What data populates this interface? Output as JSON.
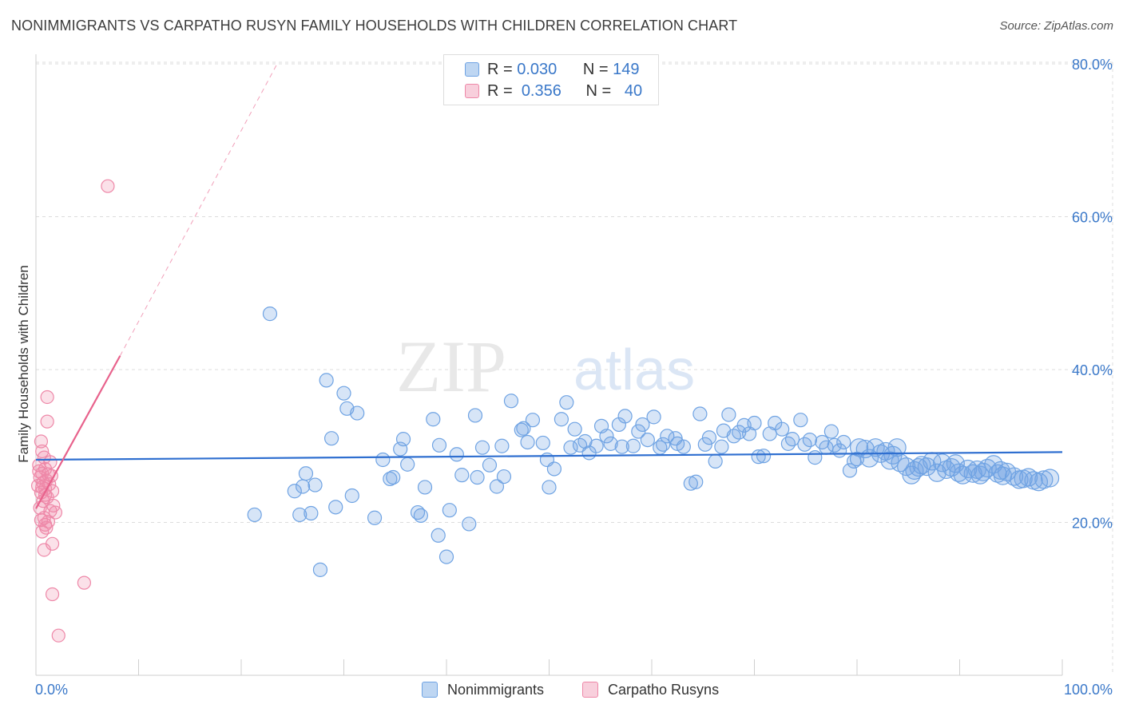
{
  "title": "NONIMMIGRANTS VS CARPATHO RUSYN FAMILY HOUSEHOLDS WITH CHILDREN CORRELATION CHART",
  "source": "Source: ZipAtlas.com",
  "watermark": {
    "zip": "ZIP",
    "atlas": "atlas"
  },
  "legend": {
    "rows": [
      {
        "r_label": "R =",
        "r_value": "0.030",
        "n_label": "N =",
        "n_value": "149"
      },
      {
        "r_label": "R =",
        "r_value": "0.356",
        "n_label": "N =",
        "n_value": "40"
      }
    ]
  },
  "bottom_legend": {
    "series1": "Nonimmigrants",
    "series2": "Carpatho Rusyns"
  },
  "colors": {
    "blue": "#6fa3e3",
    "blue_fill": "rgba(111,163,227,0.28)",
    "blue_line": "#2f6fd0",
    "pink": "#ee88a8",
    "pink_fill": "rgba(238,136,168,0.25)",
    "pink_line": "#e8628c",
    "axis_text": "#3a78c9",
    "grid": "#dcdcdc"
  },
  "chart_data": {
    "type": "scatter",
    "title": "NONIMMIGRANTS VS CARPATHO RUSYN FAMILY HOUSEHOLDS WITH CHILDREN CORRELATION CHART",
    "xlabel": "",
    "ylabel": "Family Households with Children",
    "xlim": [
      0,
      100
    ],
    "ylim": [
      0,
      80
    ],
    "x_tick_labels": [
      "0.0%",
      "100.0%"
    ],
    "y_ticks": [
      20,
      40,
      60,
      80
    ],
    "y_tick_labels": [
      "20.0%",
      "40.0%",
      "60.0%",
      "80.0%"
    ],
    "grid": true,
    "series": [
      {
        "name": "Nonimmigrants",
        "R": 0.03,
        "N": 149,
        "trend": {
          "x": [
            0,
            100
          ],
          "y": [
            28.2,
            29.2
          ],
          "style": "solid"
        },
        "points": [
          [
            22.8,
            47.3
          ],
          [
            27.7,
            13.8
          ],
          [
            21.3,
            21.0
          ],
          [
            25.2,
            24.1
          ],
          [
            26.0,
            24.7
          ],
          [
            26.3,
            26.4
          ],
          [
            27.2,
            24.9
          ],
          [
            25.7,
            21.0
          ],
          [
            26.8,
            21.2
          ],
          [
            28.3,
            38.6
          ],
          [
            28.8,
            31.0
          ],
          [
            29.2,
            22.0
          ],
          [
            30.0,
            36.9
          ],
          [
            30.3,
            34.9
          ],
          [
            30.8,
            23.5
          ],
          [
            31.3,
            34.3
          ],
          [
            33.0,
            20.6
          ],
          [
            33.8,
            28.2
          ],
          [
            34.5,
            25.7
          ],
          [
            34.8,
            25.9
          ],
          [
            35.5,
            29.6
          ],
          [
            35.8,
            30.9
          ],
          [
            36.2,
            27.6
          ],
          [
            37.2,
            21.3
          ],
          [
            37.5,
            20.9
          ],
          [
            37.9,
            24.6
          ],
          [
            38.7,
            33.5
          ],
          [
            39.2,
            18.3
          ],
          [
            39.3,
            30.1
          ],
          [
            40.0,
            15.5
          ],
          [
            40.3,
            21.6
          ],
          [
            41.0,
            28.9
          ],
          [
            41.5,
            26.2
          ],
          [
            42.2,
            19.8
          ],
          [
            42.8,
            34.0
          ],
          [
            43.0,
            25.9
          ],
          [
            43.5,
            29.8
          ],
          [
            44.2,
            27.5
          ],
          [
            44.9,
            24.7
          ],
          [
            45.4,
            30.0
          ],
          [
            45.6,
            26.0
          ],
          [
            46.3,
            35.9
          ],
          [
            47.3,
            32.1
          ],
          [
            47.5,
            32.3
          ],
          [
            47.9,
            30.5
          ],
          [
            48.4,
            33.4
          ],
          [
            49.4,
            30.4
          ],
          [
            49.8,
            28.2
          ],
          [
            50.0,
            24.6
          ],
          [
            50.5,
            27.0
          ],
          [
            51.2,
            33.5
          ],
          [
            51.7,
            35.7
          ],
          [
            52.1,
            29.8
          ],
          [
            52.5,
            32.2
          ],
          [
            53.0,
            30.1
          ],
          [
            53.5,
            30.6
          ],
          [
            53.9,
            29.1
          ],
          [
            54.6,
            30.0
          ],
          [
            55.1,
            32.6
          ],
          [
            55.6,
            31.3
          ],
          [
            56.0,
            30.3
          ],
          [
            56.8,
            32.8
          ],
          [
            57.1,
            29.9
          ],
          [
            57.4,
            33.9
          ],
          [
            58.2,
            30.0
          ],
          [
            58.7,
            31.9
          ],
          [
            59.1,
            32.8
          ],
          [
            59.6,
            30.8
          ],
          [
            60.2,
            33.8
          ],
          [
            60.8,
            29.8
          ],
          [
            61.1,
            30.2
          ],
          [
            61.5,
            31.3
          ],
          [
            62.3,
            31.0
          ],
          [
            62.5,
            30.3
          ],
          [
            63.1,
            29.9
          ],
          [
            63.8,
            25.1
          ],
          [
            64.3,
            25.3
          ],
          [
            64.7,
            34.2
          ],
          [
            65.2,
            30.2
          ],
          [
            65.6,
            31.1
          ],
          [
            66.2,
            28.0
          ],
          [
            66.8,
            29.9
          ],
          [
            67.0,
            32.0
          ],
          [
            67.5,
            34.1
          ],
          [
            68.0,
            31.3
          ],
          [
            68.5,
            31.8
          ],
          [
            69.0,
            32.7
          ],
          [
            69.5,
            31.6
          ],
          [
            70.0,
            33.0
          ],
          [
            70.4,
            28.6
          ],
          [
            70.9,
            28.7
          ],
          [
            71.5,
            31.6
          ],
          [
            72.0,
            33.0
          ],
          [
            72.7,
            32.2
          ],
          [
            73.3,
            30.3
          ],
          [
            73.7,
            30.9
          ],
          [
            74.5,
            33.4
          ],
          [
            74.9,
            30.2
          ],
          [
            75.4,
            30.8
          ],
          [
            75.9,
            28.5
          ],
          [
            76.6,
            30.5
          ],
          [
            77.0,
            29.8
          ],
          [
            77.5,
            31.9
          ],
          [
            78.3,
            29.4
          ],
          [
            78.7,
            30.5
          ],
          [
            79.3,
            26.8
          ],
          [
            79.7,
            28.0
          ],
          [
            80.2,
            29.8
          ],
          [
            80.8,
            29.6
          ],
          [
            81.2,
            28.4
          ],
          [
            81.8,
            29.8
          ],
          [
            82.3,
            29.0
          ],
          [
            82.8,
            29.3
          ],
          [
            83.2,
            28.1
          ],
          [
            83.9,
            29.8
          ],
          [
            84.2,
            27.8
          ],
          [
            84.8,
            27.3
          ],
          [
            85.3,
            26.2
          ],
          [
            85.6,
            26.8
          ],
          [
            86.3,
            27.5
          ],
          [
            86.8,
            27.3
          ],
          [
            87.3,
            28.0
          ],
          [
            87.8,
            26.5
          ],
          [
            88.3,
            27.8
          ],
          [
            88.7,
            26.9
          ],
          [
            89.2,
            27.2
          ],
          [
            89.6,
            27.7
          ],
          [
            90.3,
            26.2
          ],
          [
            90.8,
            27.0
          ],
          [
            91.3,
            26.4
          ],
          [
            91.7,
            26.9
          ],
          [
            92.3,
            26.6
          ],
          [
            92.7,
            27.1
          ],
          [
            93.3,
            27.6
          ],
          [
            93.7,
            26.4
          ],
          [
            94.2,
            26.1
          ],
          [
            94.6,
            26.6
          ],
          [
            95.3,
            26.0
          ],
          [
            95.8,
            25.6
          ],
          [
            96.2,
            25.7
          ],
          [
            96.7,
            25.9
          ],
          [
            97.2,
            25.5
          ],
          [
            97.7,
            25.3
          ],
          [
            98.2,
            25.6
          ],
          [
            98.8,
            25.8
          ],
          [
            94.0,
            26.8
          ],
          [
            92.0,
            26.2
          ],
          [
            89.9,
            26.5
          ],
          [
            86.0,
            27.2
          ],
          [
            83.5,
            28.8
          ],
          [
            80.0,
            28.3
          ],
          [
            77.8,
            30.1
          ]
        ]
      },
      {
        "name": "Carpatho Rusyns",
        "R": 0.356,
        "N": 40,
        "trend": {
          "x": [
            0,
            8.2
          ],
          "y": [
            21.8,
            41.8
          ],
          "style": "solid",
          "extension_to": [
            23.5,
            80.0
          ],
          "extension_style": "dashed"
        },
        "points": [
          [
            7.0,
            64.0
          ],
          [
            1.1,
            36.4
          ],
          [
            1.1,
            33.2
          ],
          [
            0.5,
            30.6
          ],
          [
            0.6,
            29.3
          ],
          [
            0.8,
            28.5
          ],
          [
            1.4,
            27.9
          ],
          [
            0.3,
            27.5
          ],
          [
            0.9,
            27.0
          ],
          [
            0.6,
            26.4
          ],
          [
            1.5,
            26.1
          ],
          [
            0.4,
            25.9
          ],
          [
            1.0,
            25.5
          ],
          [
            0.7,
            25.2
          ],
          [
            1.3,
            25.0
          ],
          [
            0.2,
            24.8
          ],
          [
            0.9,
            24.4
          ],
          [
            1.6,
            24.1
          ],
          [
            0.5,
            23.9
          ],
          [
            1.1,
            23.3
          ],
          [
            0.7,
            22.8
          ],
          [
            1.7,
            22.2
          ],
          [
            0.4,
            21.9
          ],
          [
            1.4,
            21.5
          ],
          [
            1.9,
            21.3
          ],
          [
            0.8,
            20.6
          ],
          [
            0.5,
            20.3
          ],
          [
            1.2,
            20.1
          ],
          [
            0.9,
            19.7
          ],
          [
            1.0,
            19.3
          ],
          [
            0.6,
            18.8
          ],
          [
            1.6,
            17.2
          ],
          [
            0.8,
            16.4
          ],
          [
            1.6,
            10.6
          ],
          [
            4.7,
            12.1
          ],
          [
            2.2,
            5.2
          ],
          [
            0.3,
            26.7
          ],
          [
            1.2,
            26.3
          ],
          [
            0.6,
            24.6
          ],
          [
            0.9,
            23.6
          ]
        ]
      }
    ]
  }
}
